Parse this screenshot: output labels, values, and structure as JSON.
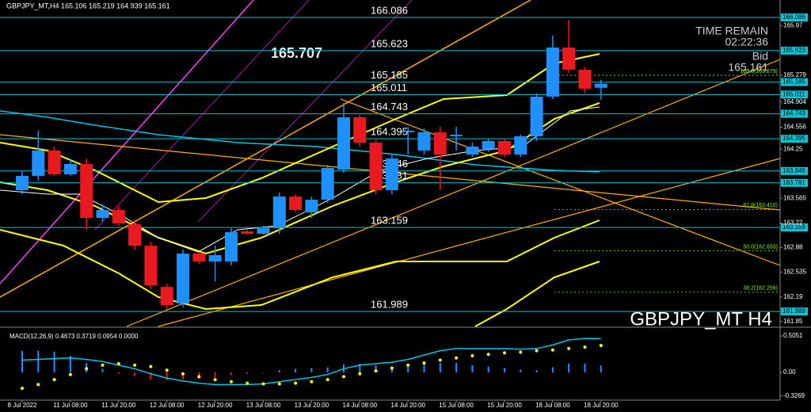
{
  "chart_data": [
    {
      "type": "candlestick",
      "title": "GBPJPY_MT H4",
      "header": "GBPJPY_MT,H4  165.106 165.219 164.939 165.161",
      "categories": [
        "8 Jul 2022",
        null,
        null,
        "11 Jul 08:00",
        null,
        null,
        "11 Jul 20:00",
        null,
        null,
        "12 Jul 08:00",
        null,
        null,
        "12 Jul 20:00",
        null,
        null,
        "13 Jul 08:00",
        null,
        null,
        "13 Jul 20:00",
        null,
        null,
        "14 Jul 08:00",
        null,
        null,
        "14 Jul 20:00",
        null,
        null,
        "15 Jul 08:00",
        null,
        null,
        "15 Jul 20:00",
        null,
        null,
        "18 Jul 08:00",
        null,
        null,
        "18 Jul 20:00"
      ],
      "open": [
        163.678,
        163.877,
        164.231,
        163.899,
        164.043,
        163.292,
        163.402,
        163.204,
        162.905,
        162.331,
        162.099,
        162.795,
        162.684,
        162.684,
        163.104,
        163.071,
        163.148,
        163.59,
        163.369,
        163.546,
        163.966,
        164.694,
        164.341,
        163.678,
        164.485,
        164.231,
        164.485,
        164.429,
        164.175,
        164.253,
        164.363,
        164.175,
        164.429,
        164.982,
        165.666,
        165.357,
        165.106
      ],
      "high": [
        163.955,
        164.507,
        164.286,
        164.12,
        164.12,
        163.48,
        163.458,
        163.259,
        162.961,
        162.375,
        162.85,
        162.817,
        162.905,
        163.148,
        163.126,
        163.181,
        163.645,
        163.623,
        163.59,
        164.032,
        164.893,
        164.728,
        164.396,
        164.175,
        164.562,
        164.54,
        164.562,
        164.562,
        164.341,
        164.396,
        164.396,
        164.451,
        165.026,
        165.832,
        166.053,
        165.39,
        165.219
      ],
      "low": [
        163.623,
        163.811,
        163.877,
        163.877,
        163.126,
        163.237,
        163.181,
        162.85,
        162.298,
        162.022,
        162.044,
        162.651,
        162.408,
        162.629,
        163.06,
        163.06,
        163.071,
        163.369,
        163.292,
        163.502,
        163.921,
        164.286,
        163.623,
        163.623,
        164.175,
        164.175,
        163.678,
        164.231,
        164.142,
        164.209,
        164.142,
        164.142,
        164.363,
        164.948,
        165.313,
        165.026,
        164.939
      ],
      "close": [
        163.877,
        164.231,
        163.899,
        164.043,
        163.292,
        163.402,
        163.215,
        162.905,
        162.353,
        162.077,
        162.795,
        162.684,
        162.773,
        163.093,
        163.071,
        163.148,
        163.59,
        163.402,
        163.546,
        163.988,
        164.694,
        164.341,
        163.678,
        164.12,
        164.507,
        164.485,
        164.175,
        164.451,
        164.286,
        164.363,
        164.175,
        164.429,
        164.982,
        165.666,
        165.357,
        165.092,
        165.161
      ],
      "up_color": "#1e90ff",
      "down_color": "#e8191f",
      "ylim": [
        161.78,
        166.24
      ],
      "yticks": [
        165.97,
        165.279,
        164.904,
        164.556,
        164.25,
        163.565,
        163.22,
        162.88,
        162.535,
        162.19,
        161.85
      ],
      "levels": [
        166.086,
        165.623,
        165.185,
        165.011,
        164.743,
        164.395,
        163.946,
        163.781,
        163.159,
        161.989
      ],
      "level_color": "#00c8d8",
      "annotation": 165.707,
      "fib": [
        {
          "value": 165.279,
          "label": "100.0(165.279)"
        },
        {
          "value": 163.41,
          "label": "61.8(163.410)"
        },
        {
          "value": 162.833,
          "label": "50.0(162.833)"
        },
        {
          "value": 162.256,
          "label": "38.2(162.256)"
        }
      ],
      "fib_color": "#7cfc00",
      "time_remain": "TIME REMAIN",
      "countdown": "02:22:36",
      "bid_label": "Bid",
      "bid": 165.161
    },
    {
      "type": "macd",
      "label": "MACD(12,26,9) 0.4673 0.3719 0.0954 0.0000",
      "main": [
        0.17,
        0.18,
        0.19,
        0.2,
        0.18,
        0.15,
        0.1,
        0.05,
        -0.02,
        -0.08,
        -0.12,
        -0.15,
        -0.17,
        -0.17,
        -0.17,
        -0.16,
        -0.13,
        -0.1,
        -0.07,
        -0.03,
        0.05,
        0.1,
        0.12,
        0.14,
        0.18,
        0.24,
        0.3,
        0.33,
        0.33,
        0.33,
        0.33,
        0.32,
        0.33,
        0.38,
        0.45,
        0.47,
        0.4673
      ],
      "signal": [
        -0.22,
        -0.17,
        -0.1,
        -0.03,
        0.05,
        0.1,
        0.12,
        0.1,
        0.08,
        0.03,
        -0.02,
        -0.06,
        -0.1,
        -0.13,
        -0.15,
        -0.16,
        -0.16,
        -0.15,
        -0.13,
        -0.1,
        -0.06,
        -0.02,
        0.02,
        0.06,
        0.1,
        0.13,
        0.17,
        0.2,
        0.23,
        0.25,
        0.27,
        0.28,
        0.3,
        0.31,
        0.33,
        0.35,
        0.3719
      ],
      "histogram": [
        0.3,
        0.3,
        0.29,
        0.23,
        0.13,
        0.05,
        -0.02,
        -0.05,
        -0.1,
        -0.11,
        -0.1,
        -0.09,
        -0.07,
        -0.04,
        -0.02,
        0.0,
        0.03,
        0.05,
        0.06,
        0.07,
        0.11,
        0.12,
        0.1,
        0.08,
        0.08,
        0.11,
        0.13,
        0.13,
        0.1,
        0.08,
        0.06,
        0.04,
        0.03,
        0.07,
        0.12,
        0.12,
        0.0954
      ],
      "main_color": "#00c8e8",
      "signal_color": "#ffff00",
      "up_color": "#1e90ff",
      "down_color": "#e8191f",
      "ylim": [
        -0.385,
        0.571
      ],
      "yticks": [
        0.5051,
        {
          "value": 0,
          "label": "0.00"
        },
        -0.3269
      ]
    }
  ]
}
